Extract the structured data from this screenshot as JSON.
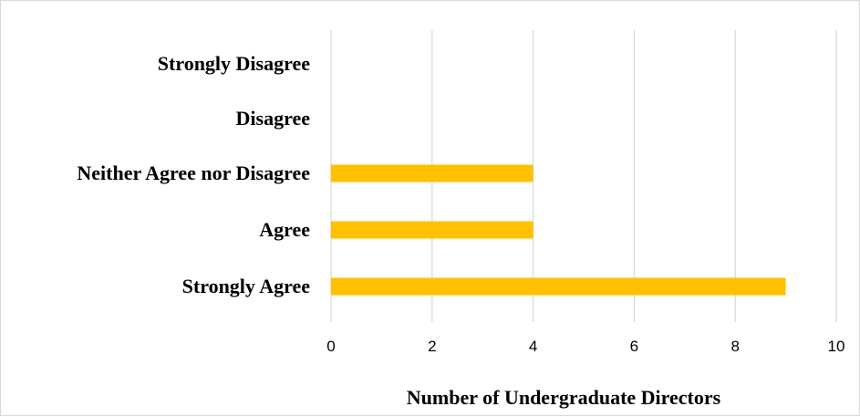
{
  "chart_data": {
    "type": "bar",
    "orientation": "horizontal",
    "categories": [
      "Strongly Disagree",
      "Disagree",
      "Neither Agree nor Disagree",
      "Agree",
      "Strongly Agree"
    ],
    "values": [
      0,
      0,
      4,
      4,
      9
    ],
    "xlabel": "Number of Undergraduate Directors",
    "ylabel": "",
    "xlim": [
      0,
      10
    ],
    "xticks": [
      "0",
      "2",
      "4",
      "6",
      "8",
      "10"
    ],
    "grid": true,
    "bar_color": "#FFC000",
    "grid_color": "#d9d9d9"
  }
}
